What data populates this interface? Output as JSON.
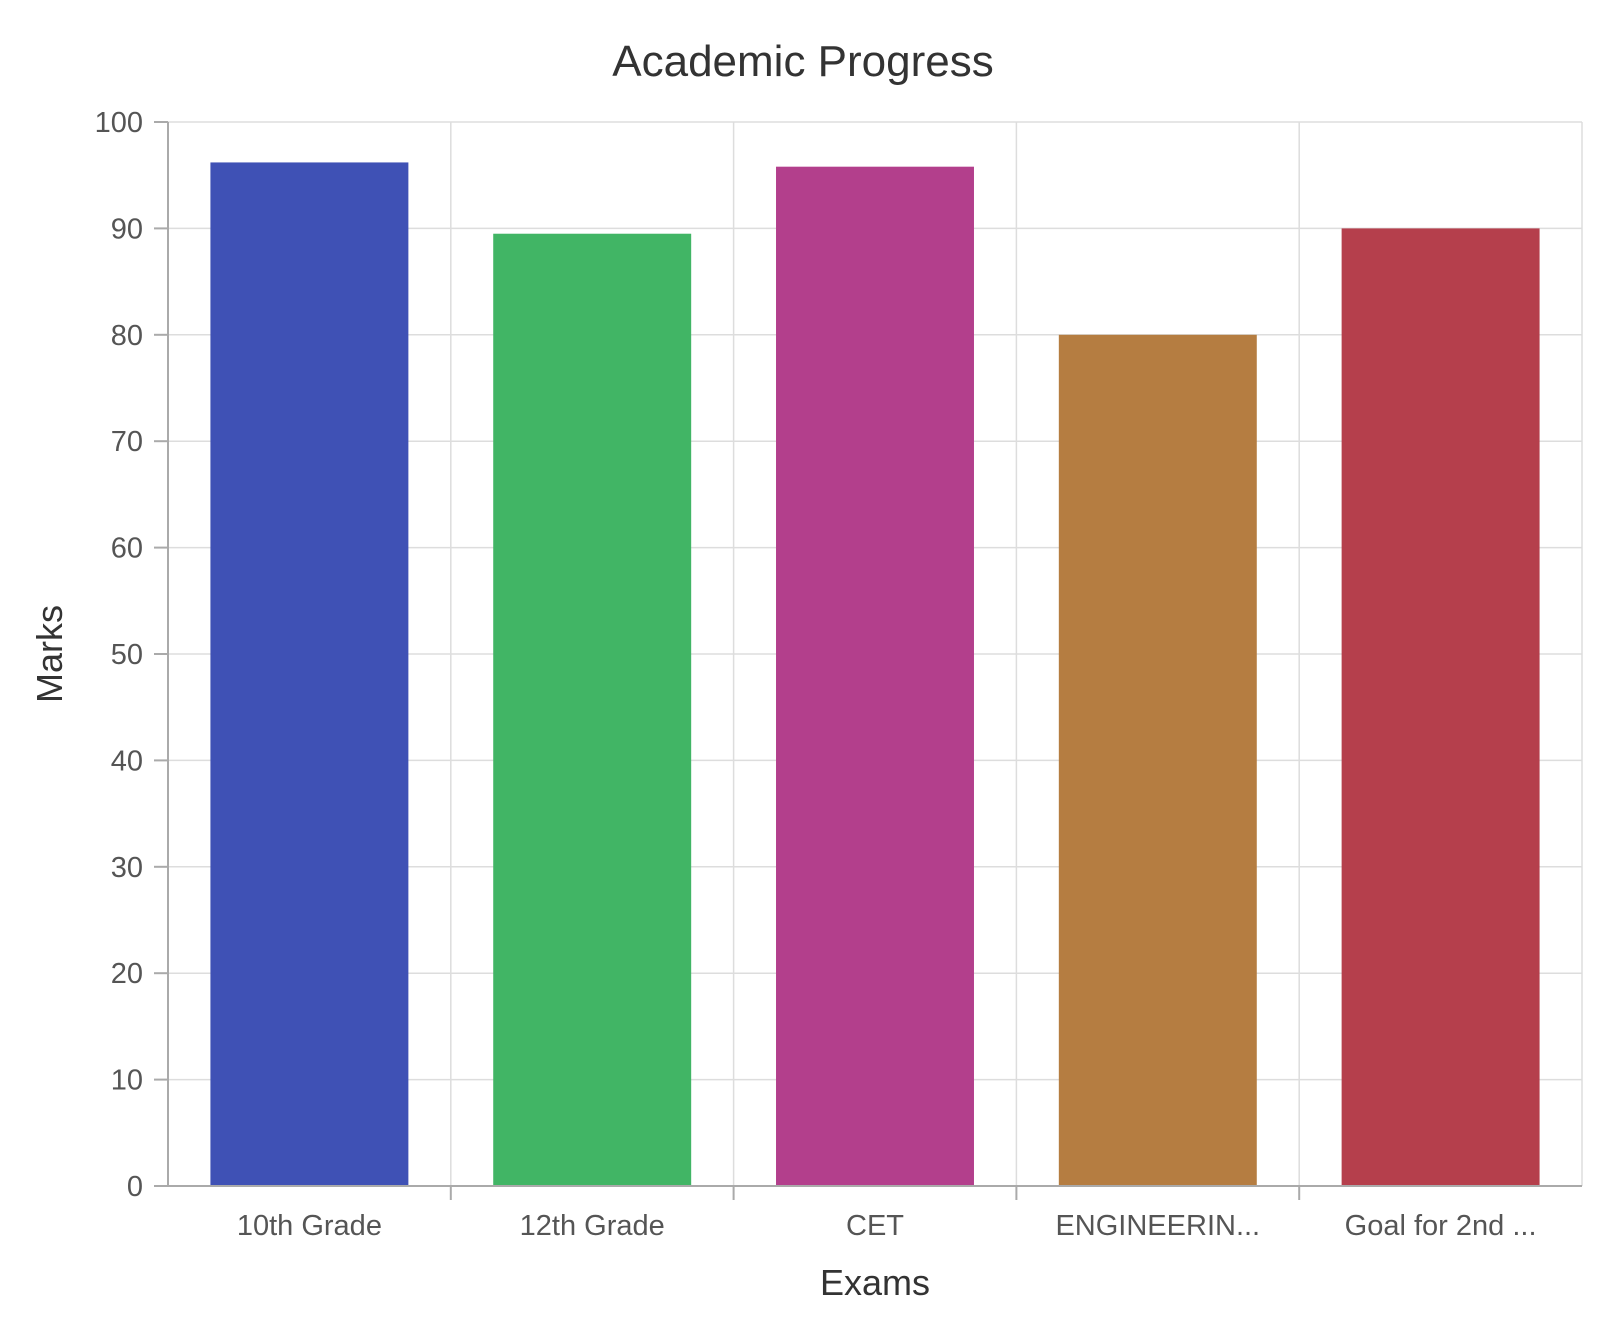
{
  "chart_data": {
    "type": "bar",
    "title": "Academic Progress",
    "xlabel": "Exams",
    "ylabel": "Marks",
    "categories": [
      "10th Grade",
      "12th Grade",
      "CET",
      "ENGINEERIN...",
      "Goal for 2nd ..."
    ],
    "values": [
      96.2,
      89.5,
      95.8,
      80,
      90
    ],
    "colors": [
      "#3f51b5",
      "#41b565",
      "#b33f8c",
      "#b57d41",
      "#b53f4c"
    ],
    "ylim": [
      0,
      100
    ],
    "yticks": [
      "0",
      "10",
      "20",
      "30",
      "40",
      "50",
      "60",
      "70",
      "80",
      "90",
      "100"
    ],
    "grid": true,
    "legend": "none"
  }
}
